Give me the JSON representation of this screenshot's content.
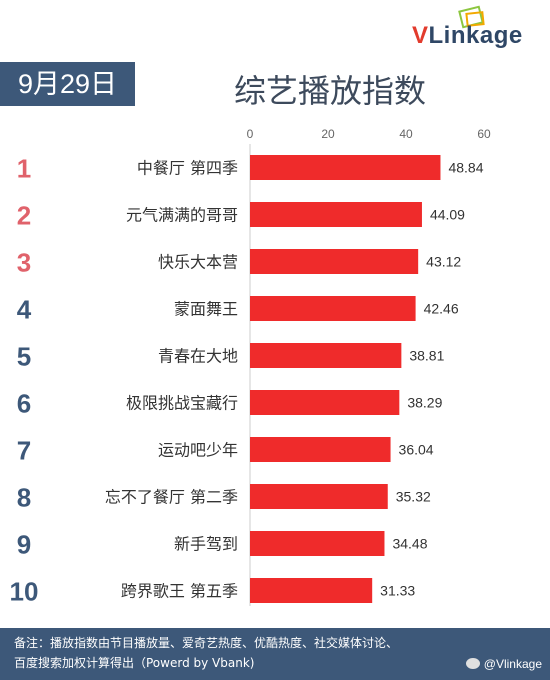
{
  "logo": {
    "brand_v": "V",
    "brand_rest": "Linkage"
  },
  "date_badge": "9月29日",
  "chart_data": {
    "type": "bar",
    "orientation": "horizontal",
    "title": "综艺播放指数",
    "ranks": [
      "1",
      "2",
      "3",
      "4",
      "5",
      "6",
      "7",
      "8",
      "9",
      "10"
    ],
    "categories": [
      "中餐厅 第四季",
      "元气满满的哥哥",
      "快乐大本营",
      "蒙面舞王",
      "青春在大地",
      "极限挑战宝藏行",
      "运动吧少年",
      "忘不了餐厅 第二季",
      "新手驾到",
      "跨界歌王 第五季"
    ],
    "values": [
      48.84,
      44.09,
      43.12,
      42.46,
      38.81,
      38.29,
      36.04,
      35.32,
      34.48,
      31.33
    ],
    "value_labels": [
      "48.84",
      "44.09",
      "43.12",
      "42.46",
      "38.81",
      "38.29",
      "36.04",
      "35.32",
      "34.48",
      "31.33"
    ],
    "xlim": [
      0,
      60
    ],
    "xticks": [
      "0",
      "20",
      "40",
      "60"
    ],
    "xtick_values": [
      0,
      20,
      40,
      60
    ],
    "axis_position": "top",
    "grid": false,
    "legend": "none",
    "bar_color": "#ef2b2b",
    "top3_rank_color": "#e0626b",
    "rank_color": "#3d5879"
  },
  "footer": {
    "line1": "备注：播放指数由节目播放量、爱奇艺热度、优酷热度、社交媒体讨论、",
    "line2": "百度搜索加权计算得出（Powerd by Vbank)",
    "watermark": "@Vlinkage"
  }
}
